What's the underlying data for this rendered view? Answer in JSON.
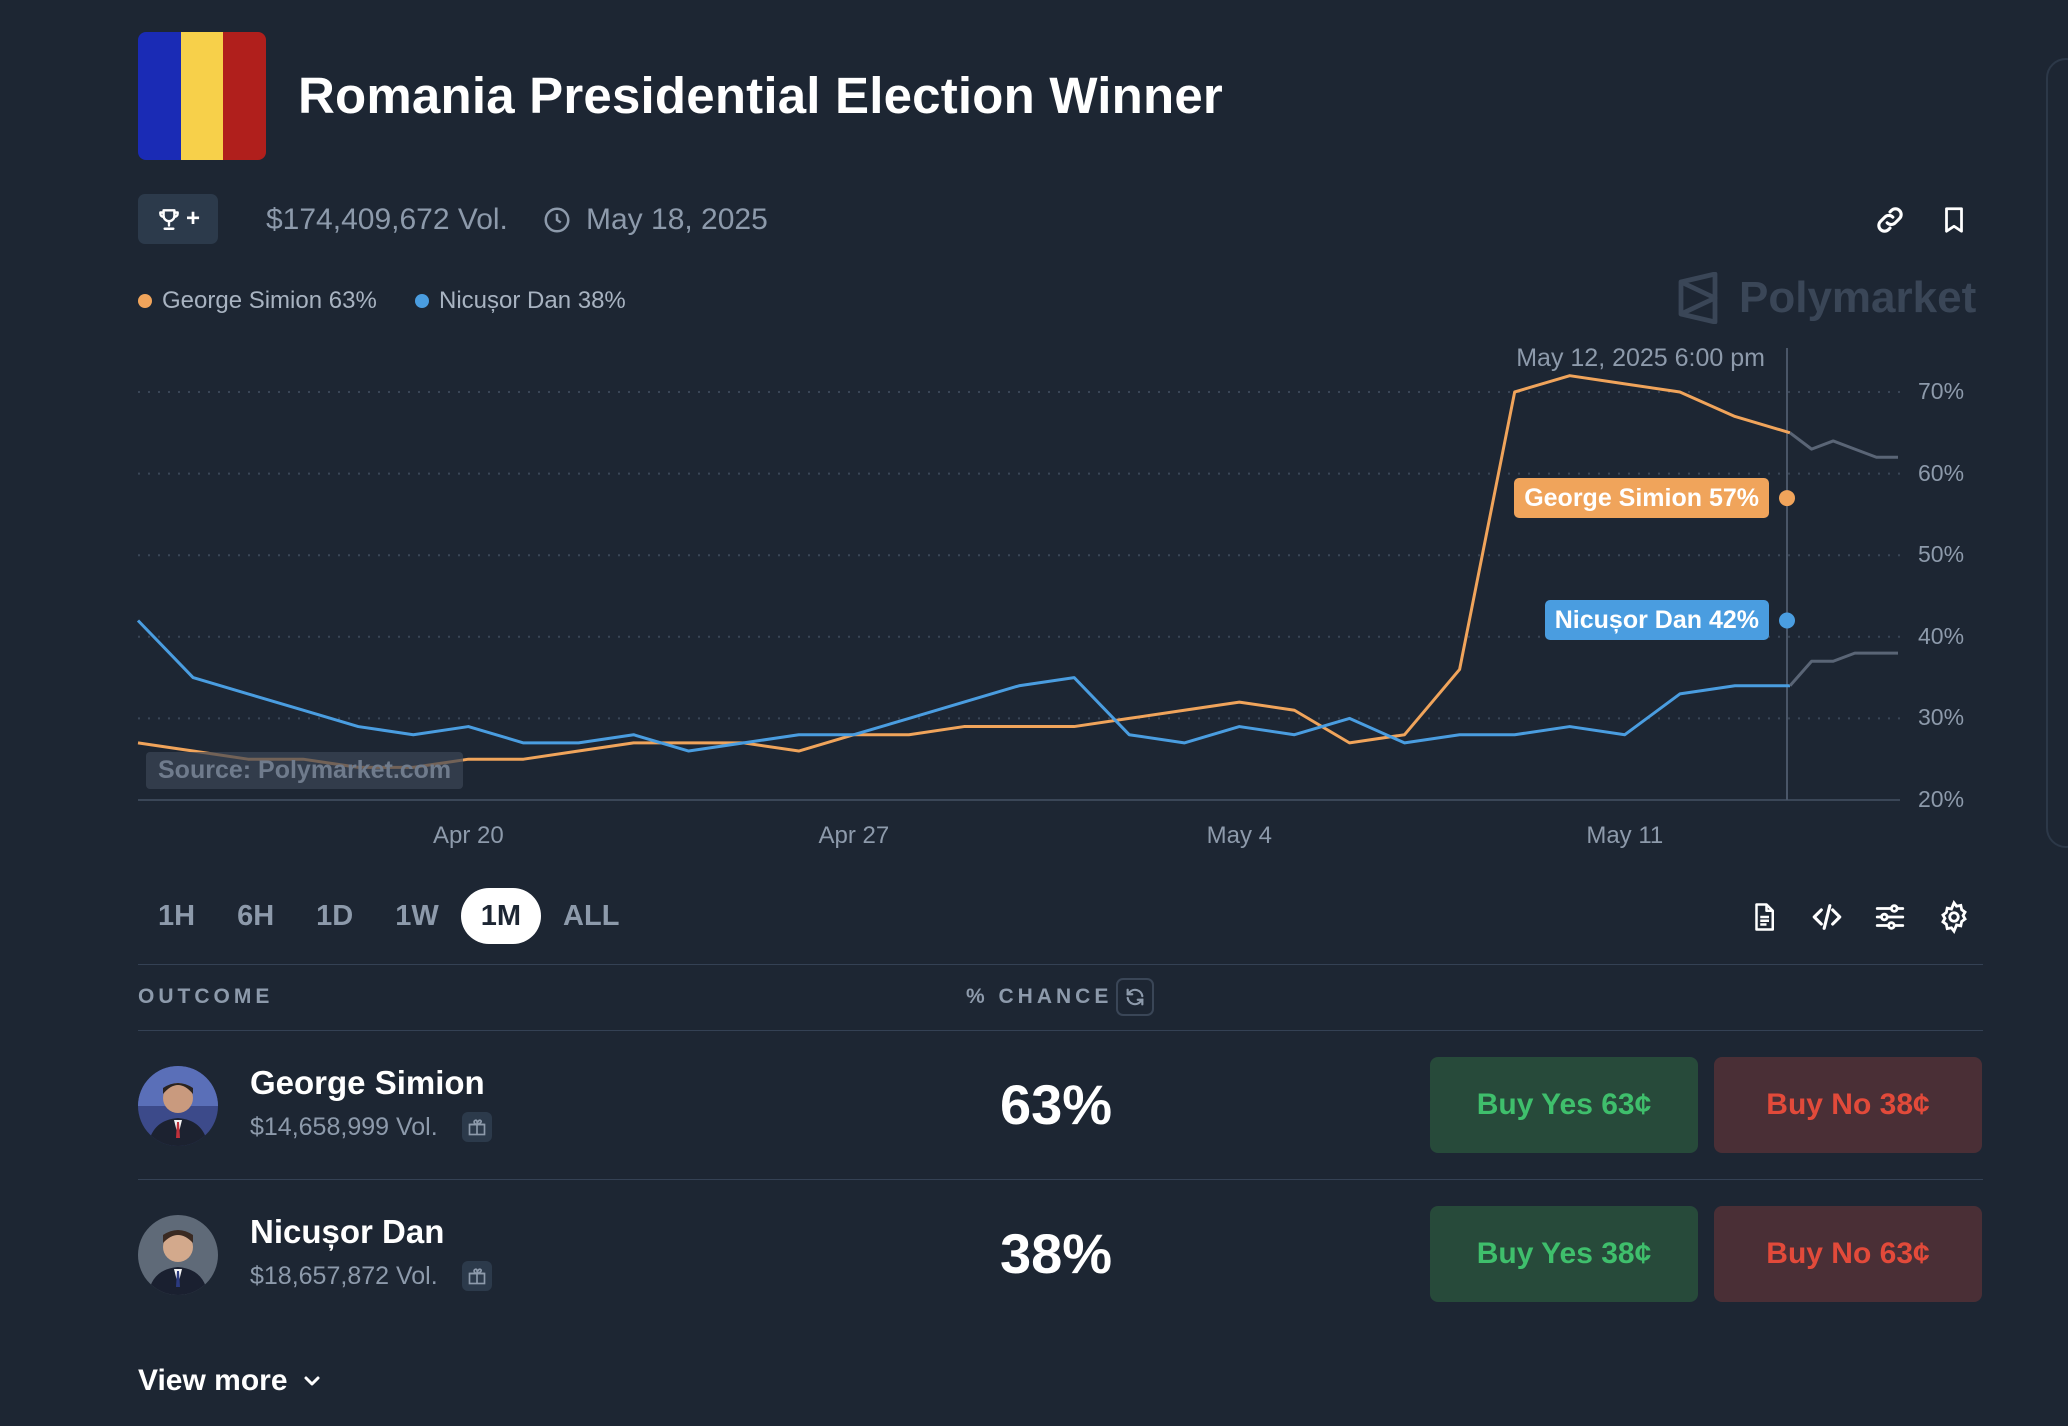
{
  "market": {
    "title": "Romania Presidential Election Winner",
    "volume": "$174,409,672 Vol.",
    "end_date": "May 18, 2025",
    "trophy_plus": "+",
    "flag_colors": [
      "#1a2bb5",
      "#f7d04a",
      "#b01f1c"
    ]
  },
  "legend": {
    "items": [
      {
        "label": "George Simion 63%",
        "color": "#f0a45b"
      },
      {
        "label": "Nicușor Dan 38%",
        "color": "#4a9de0"
      }
    ]
  },
  "watermark": "Polymarket",
  "chart_data": {
    "type": "line",
    "hover_date": "May 12, 2025 6:00 pm",
    "source_label": "Source: Polymarket.com",
    "x_tick_labels": [
      "Apr 20",
      "Apr 27",
      "May 4",
      "May 11"
    ],
    "y_tick_labels": [
      "70%",
      "60%",
      "50%",
      "40%",
      "30%",
      "20%"
    ],
    "ylim": [
      20,
      75
    ],
    "y_unit": "%",
    "grid": "horizontal dotted",
    "x_days": [
      0,
      1,
      2,
      3,
      4,
      5,
      6,
      7,
      8,
      9,
      10,
      11,
      12,
      13,
      14,
      15,
      16,
      17,
      18,
      19,
      20,
      21,
      22,
      23,
      24,
      25,
      26,
      27,
      28,
      29,
      30
    ],
    "series": [
      {
        "name": "George Simion",
        "color": "#f0a45b",
        "tooltip": "George Simion 57%",
        "values": [
          27,
          26,
          25,
          25,
          24,
          24,
          25,
          25,
          26,
          27,
          27,
          27,
          26,
          28,
          28,
          29,
          29,
          29,
          30,
          31,
          32,
          31,
          27,
          28,
          36,
          70,
          72,
          71,
          70,
          67,
          65
        ],
        "projection": [
          63,
          64,
          63,
          62,
          62
        ]
      },
      {
        "name": "Nicușor Dan",
        "color": "#4a9de0",
        "tooltip": "Nicușor Dan 42%",
        "values": [
          42,
          35,
          33,
          31,
          29,
          28,
          29,
          27,
          27,
          28,
          26,
          27,
          28,
          28,
          30,
          32,
          34,
          35,
          28,
          27,
          29,
          28,
          30,
          27,
          28,
          28,
          29,
          28,
          33,
          34,
          34
        ],
        "projection": [
          37,
          37,
          38,
          38,
          38
        ]
      }
    ]
  },
  "timeframes": {
    "items": [
      "1H",
      "6H",
      "1D",
      "1W",
      "1M",
      "ALL"
    ],
    "active": "1M"
  },
  "table": {
    "outcome_header": "OUTCOME",
    "chance_header": "% CHANCE",
    "rows": [
      {
        "name": "George Simion",
        "volume": "$14,658,999 Vol.",
        "chance": "63%",
        "buy_yes": "Buy Yes 63¢",
        "buy_no": "Buy No 38¢"
      },
      {
        "name": "Nicușor Dan",
        "volume": "$18,657,872 Vol.",
        "chance": "38%",
        "buy_yes": "Buy Yes 38¢",
        "buy_no": "Buy No 63¢"
      }
    ]
  },
  "view_more": "View more",
  "icons": {
    "header": [
      "link-icon",
      "bookmark-icon"
    ],
    "toolbar": [
      "document-icon",
      "code-icon",
      "sliders-icon",
      "gear-icon"
    ]
  }
}
